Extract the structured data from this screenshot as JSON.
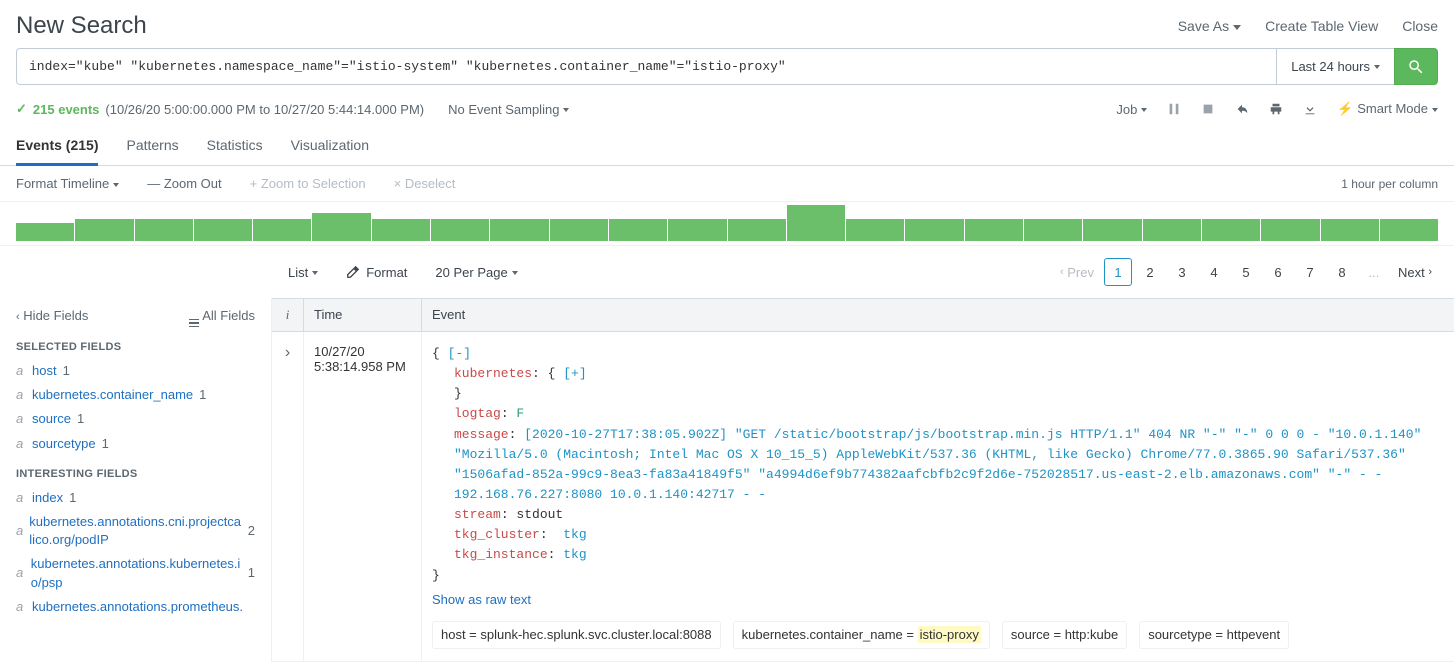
{
  "header": {
    "title": "New Search",
    "actions": {
      "save_as": "Save As",
      "create_table_view": "Create Table View",
      "close": "Close"
    }
  },
  "search": {
    "query": "index=\"kube\" \"kubernetes.namespace_name\"=\"istio-system\" \"kubernetes.container_name\"=\"istio-proxy\"",
    "time_range": "Last 24 hours"
  },
  "jobbar": {
    "events_count": "215 events",
    "timerange": "(10/26/20 5:00:00.000 PM to 10/27/20 5:44:14.000 PM)",
    "sampling": "No Event Sampling",
    "job": "Job",
    "smart_mode": "Smart Mode"
  },
  "tabs": {
    "events": "Events (215)",
    "patterns": "Patterns",
    "statistics": "Statistics",
    "visualization": "Visualization"
  },
  "timeline_controls": {
    "format_timeline": "Format Timeline",
    "zoom_out": "— Zoom Out",
    "zoom_to_selection": "+ Zoom to Selection",
    "deselect": "× Deselect",
    "per_column": "1 hour per column"
  },
  "timeline_bars": [
    18,
    22,
    22,
    22,
    22,
    28,
    22,
    22,
    22,
    22,
    22,
    22,
    22,
    36,
    22,
    22,
    22,
    22,
    22,
    22,
    22,
    22,
    22,
    22
  ],
  "timeline_bar_color": "#6bbf6b",
  "results_toolbar": {
    "list": "List",
    "format": "Format",
    "per_page": "20 Per Page",
    "prev": "Prev",
    "next": "Next",
    "pages": [
      "1",
      "2",
      "3",
      "4",
      "5",
      "6",
      "7",
      "8",
      "...",
      "Next"
    ],
    "current_page": "1"
  },
  "sidebar": {
    "hide_fields": "Hide Fields",
    "all_fields": "All Fields",
    "selected_title": "SELECTED FIELDS",
    "interesting_title": "INTERESTING FIELDS",
    "selected": [
      {
        "type": "a",
        "name": "host",
        "count": "1"
      },
      {
        "type": "a",
        "name": "kubernetes.container_name",
        "count": "1"
      },
      {
        "type": "a",
        "name": "source",
        "count": "1"
      },
      {
        "type": "a",
        "name": "sourcetype",
        "count": "1"
      }
    ],
    "interesting": [
      {
        "type": "a",
        "name": "index",
        "count": "1"
      },
      {
        "type": "a",
        "name": "kubernetes.annotations.cni.projectcalico.org/podIP",
        "count": "2"
      },
      {
        "type": "a",
        "name": "kubernetes.annotations.kubernetes.io/psp",
        "count": "1"
      },
      {
        "type": "a",
        "name": "kubernetes.annotations.prometheus.",
        "count": ""
      }
    ]
  },
  "table": {
    "col_info": "i",
    "col_time": "Time",
    "col_event": "Event"
  },
  "event": {
    "date": "10/27/20",
    "time": "5:38:14.958 PM",
    "collapse": "[-]",
    "expand": "[+]",
    "kubernetes_key": "kubernetes",
    "logtag_key": "logtag",
    "logtag_val": "F",
    "message_key": "message",
    "message_val": "[2020-10-27T17:38:05.902Z] \"GET /static/bootstrap/js/bootstrap.min.js HTTP/1.1\" 404 NR \"-\" \"-\" 0 0 0 - \"10.0.1.140\" \"Mozilla/5.0 (Macintosh; Intel Mac OS X 10_15_5) AppleWebKit/537.36 (KHTML, like Gecko) Chrome/77.0.3865.90 Safari/537.36\" \"1506afad-852a-99c9-8ea3-fa83a41849f5\" \"a4994d6ef9b774382aafcbfb2c9f2d6e-752028517.us-east-2.elb.amazonaws.com\" \"-\" - - 192.168.76.227:8080 10.0.1.140:42717 - -",
    "stream_key": "stream",
    "stream_val": "stdout",
    "tkg_cluster_key": "tkg_cluster",
    "tkg_cluster_val": "tkg",
    "tkg_instance_key": "tkg_instance",
    "tkg_instance_val": "tkg",
    "show_raw": "Show as raw text",
    "meta": {
      "host_k": "host = ",
      "host_v": "splunk-hec.splunk.svc.cluster.local:8088",
      "container_k": "kubernetes.container_name = ",
      "container_v": "istio-proxy",
      "source_k": "source = ",
      "source_v": "http:kube",
      "sourcetype_k": "sourcetype = ",
      "sourcetype_v": "httpevent"
    }
  }
}
